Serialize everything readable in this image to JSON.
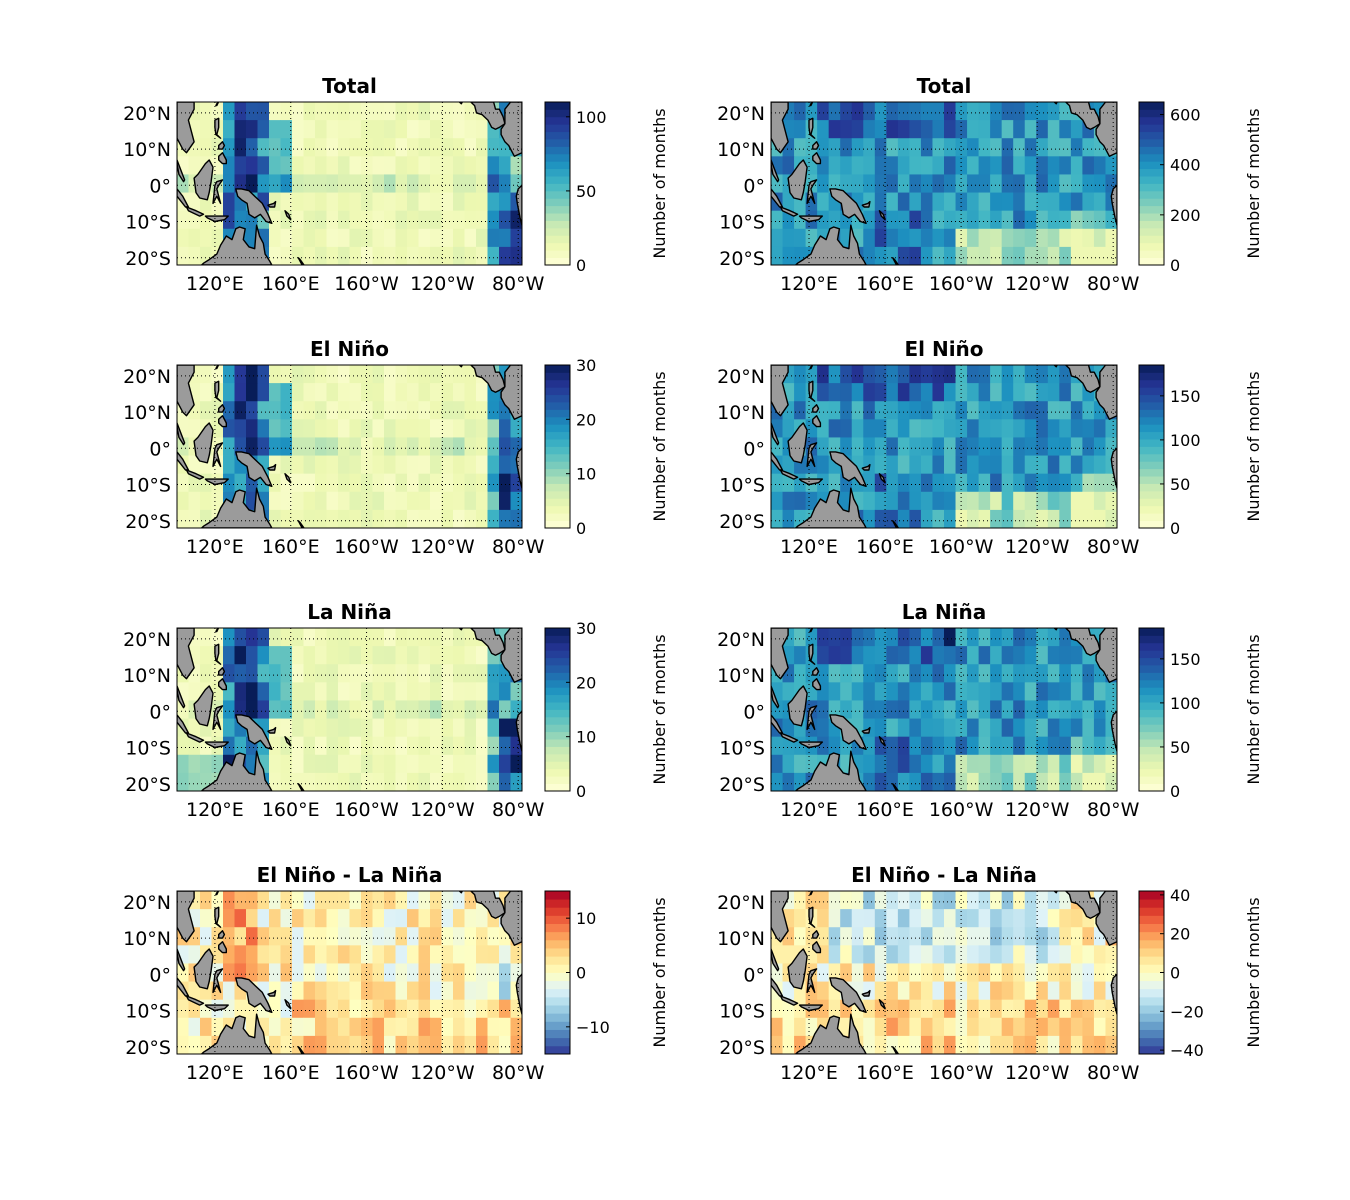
{
  "figure": {
    "x_ticks": [
      "120°E",
      "160°E",
      "160°W",
      "120°W",
      "80°W"
    ],
    "y_ticks": [
      "20°N",
      "10°N",
      "0°",
      "10°S",
      "20°S"
    ],
    "colorbar_label": "Number of months",
    "land_color": "#9b9b9b",
    "sequential_colormap": "YlGnBu (light yellow to dark blue)",
    "diverging_colormap": "RdYlBu reversed (blue negative, red positive)"
  },
  "chart_data": [
    {
      "type": "heatmap",
      "panel": "left-row1",
      "title": "Total",
      "colorbar_label": "Number of months",
      "clim": [
        0,
        110
      ],
      "colorbar_ticks": [
        0,
        50,
        100
      ],
      "colormap": "sequential"
    },
    {
      "type": "heatmap",
      "panel": "right-row1",
      "title": "Total",
      "colorbar_label": "Number of months",
      "clim": [
        0,
        650
      ],
      "colorbar_ticks": [
        0,
        200,
        400,
        600
      ],
      "colormap": "sequential"
    },
    {
      "type": "heatmap",
      "panel": "left-row2",
      "title": "El Niño",
      "colorbar_label": "Number of months",
      "clim": [
        0,
        30
      ],
      "colorbar_ticks": [
        0,
        10,
        20,
        30
      ],
      "colormap": "sequential"
    },
    {
      "type": "heatmap",
      "panel": "right-row2",
      "title": "El Niño",
      "colorbar_label": "Number of months",
      "clim": [
        0,
        185
      ],
      "colorbar_ticks": [
        0,
        50,
        100,
        150
      ],
      "colormap": "sequential"
    },
    {
      "type": "heatmap",
      "panel": "left-row3",
      "title": "La Niña",
      "colorbar_label": "Number of months",
      "clim": [
        0,
        30
      ],
      "colorbar_ticks": [
        0,
        10,
        20,
        30
      ],
      "colormap": "sequential"
    },
    {
      "type": "heatmap",
      "panel": "right-row3",
      "title": "La Niña",
      "colorbar_label": "Number of months",
      "clim": [
        0,
        185
      ],
      "colorbar_ticks": [
        0,
        50,
        100,
        150
      ],
      "colormap": "sequential"
    },
    {
      "type": "heatmap",
      "panel": "left-row4",
      "title": "El Niño - La Niña",
      "colorbar_label": "Number of months",
      "clim": [
        -15,
        15
      ],
      "colorbar_ticks": [
        -10,
        0,
        10
      ],
      "colorbar_tick_labels": [
        "−10",
        "0",
        "10"
      ],
      "colormap": "diverging"
    },
    {
      "type": "heatmap",
      "panel": "right-row4",
      "title": "El Niño - La Niña",
      "colorbar_label": "Number of months",
      "clim": [
        -42,
        42
      ],
      "colorbar_ticks": [
        -40,
        -20,
        0,
        20,
        40
      ],
      "colorbar_tick_labels": [
        "−40",
        "−20",
        "0",
        "20",
        "40"
      ],
      "colormap": "diverging"
    }
  ]
}
